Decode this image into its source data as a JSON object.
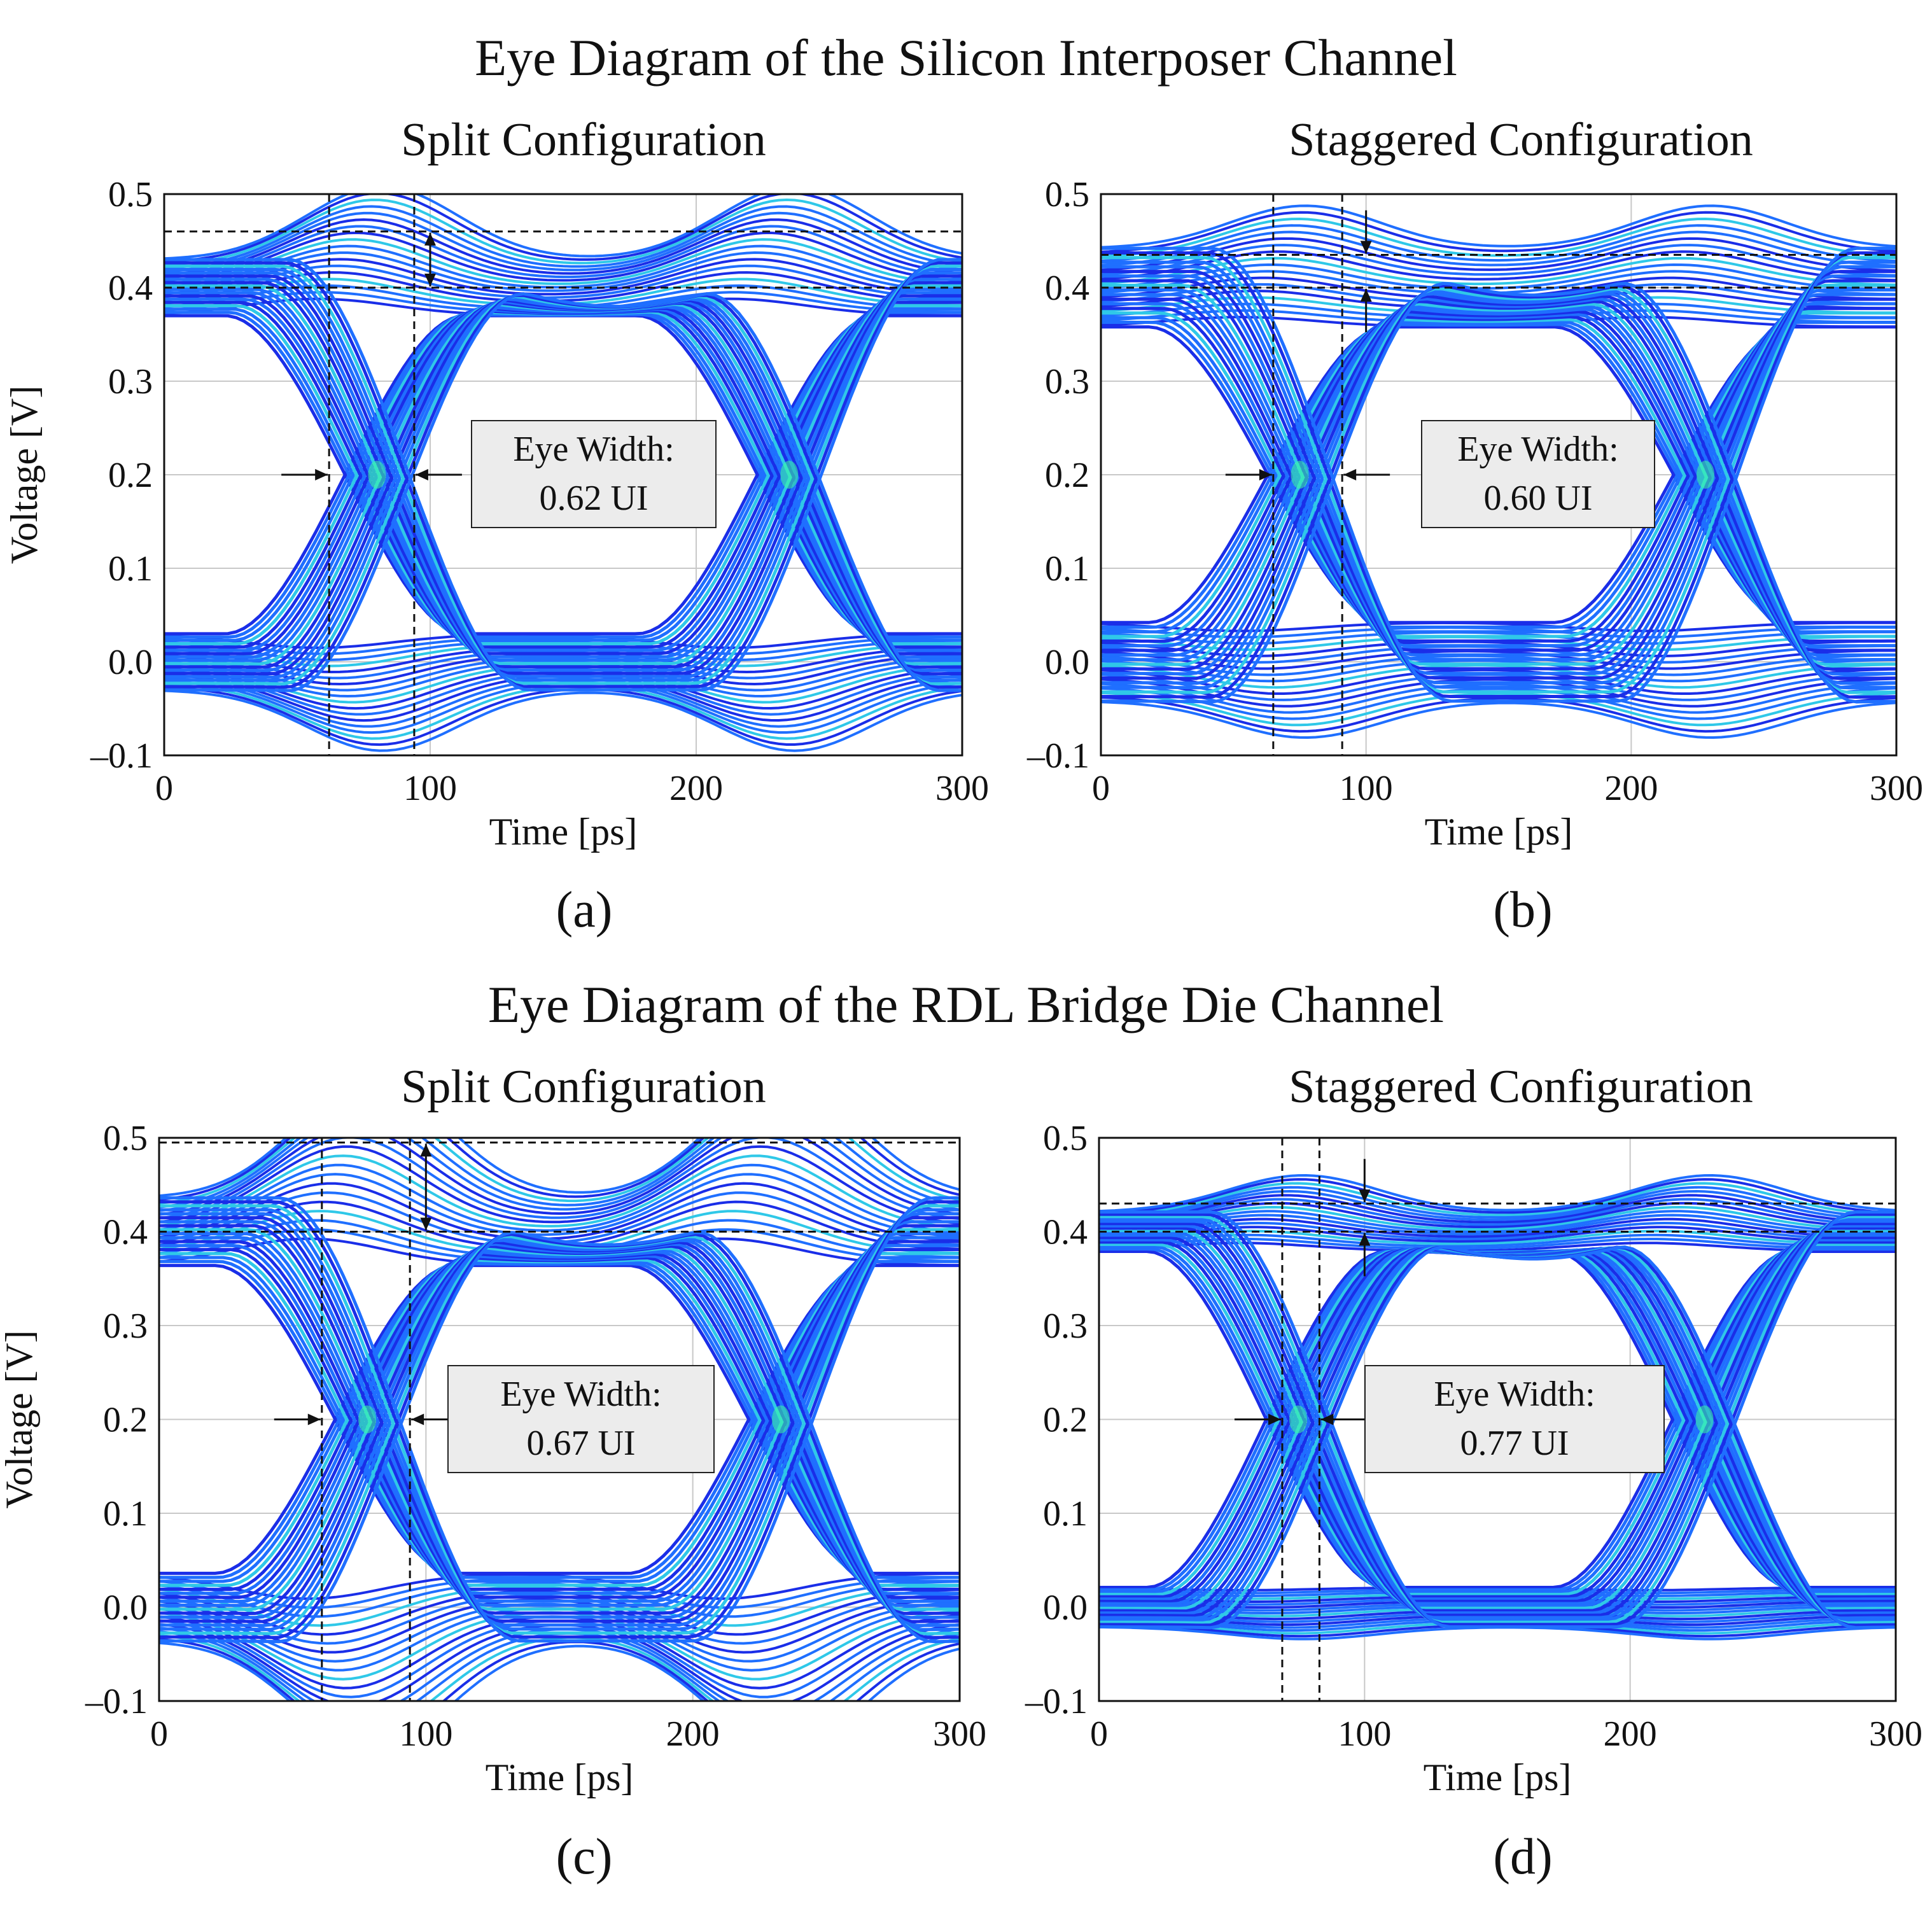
{
  "figure": {
    "section_titles": [
      "Eye Diagram of the Silicon Interposer Channel",
      "Eye Diagram of the RDL Bridge Die Channel"
    ]
  },
  "colors": {
    "trace_dark": "#1a2ee8",
    "trace_mid": "#1f6fff",
    "trace_light": "#2fc8e8",
    "trace_hot": "#3cff9c",
    "grid": "#c8c8c8",
    "eye_box_fill": "#ececec"
  },
  "panels": [
    {
      "id": "a",
      "label": "(a)",
      "subtitle": "Split Configuration",
      "eye_label": "Eye Width:",
      "eye_value": "0.62 UI"
    },
    {
      "id": "b",
      "label": "(b)",
      "subtitle": "Staggered Configuration",
      "eye_label": "Eye Width:",
      "eye_value": "0.60 UI"
    },
    {
      "id": "c",
      "label": "(c)",
      "subtitle": "Split Configuration",
      "eye_label": "Eye Width:",
      "eye_value": "0.67 UI"
    },
    {
      "id": "d",
      "label": "(d)",
      "subtitle": "Staggered Configuration",
      "eye_label": "Eye Width:",
      "eye_value": "0.77 UI"
    }
  ],
  "chart_data": [
    {
      "type": "line",
      "panel": "a",
      "title": "Split Configuration",
      "xlabel": "Time [ps]",
      "ylabel": "Voltage [V]",
      "xlim": [
        0,
        300
      ],
      "ylim": [
        -0.1,
        0.5
      ],
      "xticks": [
        0,
        100,
        200,
        300
      ],
      "yticks": [
        -0.1,
        0.0,
        0.1,
        0.2,
        0.3,
        0.4,
        0.5
      ],
      "xtick_labels": [
        "0",
        "100",
        "200",
        "300"
      ],
      "ytick_labels": [
        "–0.1",
        "0.0",
        "0.1",
        "0.2",
        "0.3",
        "0.4",
        "0.5"
      ],
      "grid": true,
      "eye": {
        "low": 0.0,
        "high": 0.4,
        "crossings": [
          80,
          235
        ],
        "overshoot_high": 0.46,
        "overshoot_low": -0.05,
        "rise_start": 25,
        "rise_end": 195,
        "ripple": 0.05,
        "eye_width_ui": 0.62,
        "markers": {
          "v_left": 62,
          "v_right": 94,
          "h_top": 0.46,
          "h_bottom": 0.4,
          "mid_level": 0.2
        }
      }
    },
    {
      "type": "line",
      "panel": "b",
      "title": "Staggered Configuration",
      "xlabel": "Time [ps]",
      "ylabel": "",
      "xlim": [
        0,
        300
      ],
      "ylim": [
        -0.1,
        0.5
      ],
      "xticks": [
        0,
        100,
        200,
        300
      ],
      "yticks": [
        -0.1,
        0.0,
        0.1,
        0.2,
        0.3,
        0.4,
        0.5
      ],
      "xtick_labels": [
        "0",
        "100",
        "200",
        "300"
      ],
      "ytick_labels": [
        "–0.1",
        "0.0",
        "0.1",
        "0.2",
        "0.3",
        "0.4",
        "0.5"
      ],
      "grid": true,
      "eye": {
        "low": 0.0,
        "high": 0.4,
        "crossings": [
          75,
          228
        ],
        "overshoot_high": 0.435,
        "overshoot_low": -0.03,
        "rise_start": 25,
        "rise_end": 185,
        "ripple": 0.07,
        "eye_width_ui": 0.6,
        "markers": {
          "v_left": 65,
          "v_right": 91,
          "h_top": 0.435,
          "h_bottom": 0.4,
          "mid_level": 0.2
        }
      }
    },
    {
      "type": "line",
      "panel": "c",
      "title": "Split Configuration",
      "xlabel": "Time [ps]",
      "ylabel": "Voltage [V]",
      "xlim": [
        0,
        300
      ],
      "ylim": [
        -0.1,
        0.5
      ],
      "xticks": [
        0,
        100,
        200,
        300
      ],
      "yticks": [
        -0.1,
        0.0,
        0.1,
        0.2,
        0.3,
        0.4,
        0.5
      ],
      "xtick_labels": [
        "0",
        "100",
        "200",
        "300"
      ],
      "ytick_labels": [
        "–0.1",
        "0.0",
        "0.1",
        "0.2",
        "0.3",
        "0.4",
        "0.5"
      ],
      "grid": true,
      "eye": {
        "low": 0.0,
        "high": 0.4,
        "crossings": [
          78,
          233
        ],
        "overshoot_high": 0.495,
        "overshoot_low": -0.09,
        "rise_start": 20,
        "rise_end": 200,
        "ripple": 0.06,
        "eye_width_ui": 0.67,
        "markers": {
          "v_left": 61,
          "v_right": 94,
          "h_top": 0.495,
          "h_bottom": 0.4,
          "mid_level": 0.2
        }
      }
    },
    {
      "type": "line",
      "panel": "d",
      "title": "Staggered Configuration",
      "xlabel": "Time [ps]",
      "ylabel": "",
      "xlim": [
        0,
        300
      ],
      "ylim": [
        -0.1,
        0.5
      ],
      "xticks": [
        0,
        100,
        200,
        300
      ],
      "yticks": [
        -0.1,
        0.0,
        0.1,
        0.2,
        0.3,
        0.4,
        0.5
      ],
      "xtick_labels": [
        "0",
        "100",
        "200",
        "300"
      ],
      "ytick_labels": [
        "–0.1",
        "0.0",
        "0.1",
        "0.2",
        "0.3",
        "0.4",
        "0.5"
      ],
      "grid": true,
      "eye": {
        "low": 0.0,
        "high": 0.4,
        "crossings": [
          75,
          228
        ],
        "overshoot_high": 0.43,
        "overshoot_low": -0.01,
        "rise_start": 35,
        "rise_end": 190,
        "ripple": 0.035,
        "eye_width_ui": 0.77,
        "markers": {
          "v_left": 69,
          "v_right": 83,
          "h_top": 0.43,
          "h_bottom": 0.4,
          "mid_level": 0.2
        }
      }
    }
  ]
}
